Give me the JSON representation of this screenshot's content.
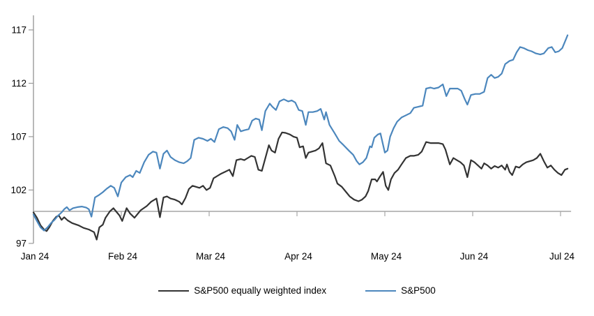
{
  "chart_data": {
    "type": "line",
    "title": "",
    "xlabel": "",
    "ylabel": "",
    "x_axis": {
      "tick_labels": [
        "Jan 24",
        "Feb 24",
        "Mar 24",
        "Apr 24",
        "May 24",
        "Jun 24",
        "Jul 24"
      ],
      "tick_positions_months": [
        0,
        1,
        2,
        3,
        4,
        5,
        6
      ]
    },
    "y_axis": {
      "ticks": [
        97,
        102,
        107,
        112,
        117
      ],
      "range": [
        97,
        118.6
      ]
    },
    "baseline_value": 100,
    "grid": "off",
    "legend_position": "bottom",
    "colors": {
      "equal_weight_line": "#333333",
      "sp500_line": "#4c87bd",
      "axis": "#9b9b9b",
      "baseline": "#a6a6a6",
      "text": "#000000"
    },
    "series": [
      {
        "name": "S&P500 equally weighted index",
        "color": "#333333",
        "points": [
          [
            0.0,
            99.9
          ],
          [
            0.04,
            99.4
          ],
          [
            0.08,
            98.7
          ],
          [
            0.12,
            98.3
          ],
          [
            0.15,
            98.15
          ],
          [
            0.18,
            98.5
          ],
          [
            0.22,
            99.1
          ],
          [
            0.26,
            99.5
          ],
          [
            0.29,
            99.6
          ],
          [
            0.32,
            99.2
          ],
          [
            0.35,
            99.45
          ],
          [
            0.39,
            99.15
          ],
          [
            0.44,
            98.9
          ],
          [
            0.51,
            98.7
          ],
          [
            0.57,
            98.45
          ],
          [
            0.63,
            98.3
          ],
          [
            0.69,
            98.05
          ],
          [
            0.72,
            97.35
          ],
          [
            0.75,
            98.5
          ],
          [
            0.79,
            98.75
          ],
          [
            0.82,
            99.4
          ],
          [
            0.87,
            100.0
          ],
          [
            0.91,
            100.3
          ],
          [
            0.95,
            99.9
          ],
          [
            0.98,
            99.6
          ],
          [
            1.01,
            99.1
          ],
          [
            1.06,
            100.3
          ],
          [
            1.1,
            99.8
          ],
          [
            1.15,
            99.4
          ],
          [
            1.22,
            100.1
          ],
          [
            1.29,
            100.5
          ],
          [
            1.34,
            100.9
          ],
          [
            1.4,
            101.2
          ],
          [
            1.44,
            99.45
          ],
          [
            1.48,
            101.3
          ],
          [
            1.52,
            101.4
          ],
          [
            1.56,
            101.2
          ],
          [
            1.61,
            101.1
          ],
          [
            1.66,
            100.9
          ],
          [
            1.69,
            100.65
          ],
          [
            1.73,
            101.25
          ],
          [
            1.77,
            102.1
          ],
          [
            1.81,
            102.4
          ],
          [
            1.85,
            102.3
          ],
          [
            1.89,
            102.2
          ],
          [
            1.93,
            102.4
          ],
          [
            1.97,
            102.0
          ],
          [
            2.01,
            102.2
          ],
          [
            2.05,
            103.1
          ],
          [
            2.09,
            103.3
          ],
          [
            2.13,
            103.5
          ],
          [
            2.18,
            103.7
          ],
          [
            2.23,
            103.9
          ],
          [
            2.27,
            103.3
          ],
          [
            2.31,
            104.8
          ],
          [
            2.36,
            104.9
          ],
          [
            2.4,
            104.8
          ],
          [
            2.44,
            105.0
          ],
          [
            2.48,
            105.2
          ],
          [
            2.52,
            105.1
          ],
          [
            2.56,
            103.9
          ],
          [
            2.6,
            103.8
          ],
          [
            2.63,
            104.7
          ],
          [
            2.68,
            106.2
          ],
          [
            2.71,
            105.7
          ],
          [
            2.75,
            105.5
          ],
          [
            2.79,
            106.8
          ],
          [
            2.83,
            107.4
          ],
          [
            2.87,
            107.35
          ],
          [
            2.92,
            107.2
          ],
          [
            2.96,
            107.0
          ],
          [
            3.0,
            106.9
          ],
          [
            3.03,
            106.0
          ],
          [
            3.07,
            106.1
          ],
          [
            3.1,
            105.0
          ],
          [
            3.13,
            105.5
          ],
          [
            3.17,
            105.6
          ],
          [
            3.21,
            105.7
          ],
          [
            3.25,
            105.9
          ],
          [
            3.29,
            106.4
          ],
          [
            3.33,
            104.5
          ],
          [
            3.38,
            104.3
          ],
          [
            3.43,
            103.3
          ],
          [
            3.46,
            102.6
          ],
          [
            3.51,
            102.3
          ],
          [
            3.56,
            101.8
          ],
          [
            3.6,
            101.4
          ],
          [
            3.65,
            101.1
          ],
          [
            3.7,
            100.95
          ],
          [
            3.74,
            101.1
          ],
          [
            3.78,
            101.4
          ],
          [
            3.81,
            101.9
          ],
          [
            3.85,
            103.0
          ],
          [
            3.89,
            103.0
          ],
          [
            3.91,
            102.8
          ],
          [
            3.94,
            103.2
          ],
          [
            3.98,
            103.7
          ],
          [
            4.01,
            102.4
          ],
          [
            4.04,
            102.0
          ],
          [
            4.07,
            103.0
          ],
          [
            4.11,
            103.6
          ],
          [
            4.15,
            103.9
          ],
          [
            4.19,
            104.4
          ],
          [
            4.24,
            105.0
          ],
          [
            4.29,
            105.2
          ],
          [
            4.33,
            105.2
          ],
          [
            4.38,
            105.3
          ],
          [
            4.42,
            105.6
          ],
          [
            4.47,
            106.5
          ],
          [
            4.52,
            106.4
          ],
          [
            4.56,
            106.4
          ],
          [
            4.61,
            106.4
          ],
          [
            4.66,
            106.3
          ],
          [
            4.69,
            105.8
          ],
          [
            4.74,
            104.4
          ],
          [
            4.78,
            105.0
          ],
          [
            4.82,
            104.8
          ],
          [
            4.86,
            104.6
          ],
          [
            4.9,
            104.3
          ],
          [
            4.94,
            103.2
          ],
          [
            4.98,
            104.8
          ],
          [
            5.02,
            104.6
          ],
          [
            5.06,
            104.3
          ],
          [
            5.1,
            104.0
          ],
          [
            5.13,
            104.5
          ],
          [
            5.17,
            104.3
          ],
          [
            5.21,
            104.0
          ],
          [
            5.25,
            104.25
          ],
          [
            5.29,
            104.1
          ],
          [
            5.33,
            104.3
          ],
          [
            5.37,
            103.9
          ],
          [
            5.39,
            104.4
          ],
          [
            5.42,
            103.7
          ],
          [
            5.45,
            103.4
          ],
          [
            5.49,
            104.2
          ],
          [
            5.53,
            104.1
          ],
          [
            5.57,
            104.4
          ],
          [
            5.61,
            104.6
          ],
          [
            5.65,
            104.7
          ],
          [
            5.69,
            104.8
          ],
          [
            5.73,
            105.0
          ],
          [
            5.77,
            105.4
          ],
          [
            5.81,
            104.7
          ],
          [
            5.85,
            104.1
          ],
          [
            5.89,
            104.3
          ],
          [
            5.93,
            103.9
          ],
          [
            5.97,
            103.6
          ],
          [
            6.01,
            103.4
          ],
          [
            6.05,
            103.9
          ],
          [
            6.08,
            104.0
          ]
        ]
      },
      {
        "name": "S&P500",
        "color": "#4c87bd",
        "points": [
          [
            0.0,
            99.7
          ],
          [
            0.04,
            99.1
          ],
          [
            0.08,
            98.5
          ],
          [
            0.12,
            98.2
          ],
          [
            0.16,
            98.5
          ],
          [
            0.2,
            98.9
          ],
          [
            0.24,
            99.2
          ],
          [
            0.28,
            99.6
          ],
          [
            0.32,
            99.9
          ],
          [
            0.35,
            100.2
          ],
          [
            0.38,
            100.4
          ],
          [
            0.41,
            100.1
          ],
          [
            0.45,
            100.3
          ],
          [
            0.5,
            100.4
          ],
          [
            0.55,
            100.45
          ],
          [
            0.6,
            100.35
          ],
          [
            0.63,
            100.2
          ],
          [
            0.66,
            99.5
          ],
          [
            0.7,
            101.3
          ],
          [
            0.74,
            101.5
          ],
          [
            0.79,
            101.8
          ],
          [
            0.83,
            102.1
          ],
          [
            0.88,
            102.4
          ],
          [
            0.92,
            102.2
          ],
          [
            0.96,
            101.4
          ],
          [
            1.0,
            102.7
          ],
          [
            1.05,
            103.2
          ],
          [
            1.1,
            103.4
          ],
          [
            1.13,
            103.2
          ],
          [
            1.17,
            103.8
          ],
          [
            1.21,
            103.6
          ],
          [
            1.26,
            104.6
          ],
          [
            1.31,
            105.3
          ],
          [
            1.36,
            105.6
          ],
          [
            1.4,
            105.5
          ],
          [
            1.44,
            104.0
          ],
          [
            1.48,
            105.4
          ],
          [
            1.52,
            105.7
          ],
          [
            1.56,
            105.1
          ],
          [
            1.61,
            104.8
          ],
          [
            1.66,
            104.6
          ],
          [
            1.71,
            104.5
          ],
          [
            1.75,
            104.7
          ],
          [
            1.79,
            105.0
          ],
          [
            1.83,
            106.7
          ],
          [
            1.88,
            106.9
          ],
          [
            1.93,
            106.8
          ],
          [
            1.98,
            106.6
          ],
          [
            2.02,
            106.8
          ],
          [
            2.06,
            106.5
          ],
          [
            2.11,
            107.7
          ],
          [
            2.16,
            107.9
          ],
          [
            2.21,
            107.8
          ],
          [
            2.25,
            107.5
          ],
          [
            2.29,
            106.7
          ],
          [
            2.32,
            108.1
          ],
          [
            2.36,
            107.5
          ],
          [
            2.4,
            107.6
          ],
          [
            2.45,
            107.7
          ],
          [
            2.49,
            108.5
          ],
          [
            2.53,
            108.7
          ],
          [
            2.57,
            108.6
          ],
          [
            2.6,
            107.6
          ],
          [
            2.64,
            109.4
          ],
          [
            2.69,
            110.1
          ],
          [
            2.72,
            109.8
          ],
          [
            2.76,
            109.5
          ],
          [
            2.8,
            110.3
          ],
          [
            2.85,
            110.5
          ],
          [
            2.9,
            110.3
          ],
          [
            2.94,
            110.4
          ],
          [
            2.98,
            110.2
          ],
          [
            3.02,
            109.5
          ],
          [
            3.06,
            109.4
          ],
          [
            3.1,
            108.1
          ],
          [
            3.13,
            109.3
          ],
          [
            3.18,
            109.3
          ],
          [
            3.23,
            109.4
          ],
          [
            3.27,
            109.6
          ],
          [
            3.31,
            108.6
          ],
          [
            3.33,
            109.3
          ],
          [
            3.37,
            108.1
          ],
          [
            3.43,
            107.3
          ],
          [
            3.48,
            106.6
          ],
          [
            3.53,
            106.2
          ],
          [
            3.59,
            105.7
          ],
          [
            3.64,
            105.3
          ],
          [
            3.68,
            104.7
          ],
          [
            3.71,
            104.4
          ],
          [
            3.75,
            104.6
          ],
          [
            3.79,
            105.0
          ],
          [
            3.83,
            106.1
          ],
          [
            3.85,
            106.0
          ],
          [
            3.88,
            106.9
          ],
          [
            3.92,
            107.2
          ],
          [
            3.95,
            107.3
          ],
          [
            4.0,
            105.5
          ],
          [
            4.03,
            105.7
          ],
          [
            4.06,
            107.0
          ],
          [
            4.1,
            107.8
          ],
          [
            4.14,
            108.4
          ],
          [
            4.19,
            108.8
          ],
          [
            4.24,
            109.0
          ],
          [
            4.29,
            109.2
          ],
          [
            4.33,
            109.7
          ],
          [
            4.38,
            109.8
          ],
          [
            4.43,
            109.9
          ],
          [
            4.47,
            111.5
          ],
          [
            4.52,
            111.6
          ],
          [
            4.56,
            111.5
          ],
          [
            4.61,
            111.6
          ],
          [
            4.66,
            111.9
          ],
          [
            4.7,
            110.8
          ],
          [
            4.74,
            111.5
          ],
          [
            4.79,
            111.5
          ],
          [
            4.83,
            111.5
          ],
          [
            4.87,
            111.3
          ],
          [
            4.91,
            110.5
          ],
          [
            4.94,
            110.0
          ],
          [
            4.98,
            110.9
          ],
          [
            5.03,
            111.0
          ],
          [
            5.08,
            111.0
          ],
          [
            5.13,
            111.2
          ],
          [
            5.17,
            112.5
          ],
          [
            5.21,
            112.8
          ],
          [
            5.25,
            112.5
          ],
          [
            5.29,
            112.6
          ],
          [
            5.33,
            112.9
          ],
          [
            5.37,
            113.8
          ],
          [
            5.42,
            114.1
          ],
          [
            5.46,
            114.2
          ],
          [
            5.5,
            114.9
          ],
          [
            5.54,
            115.4
          ],
          [
            5.58,
            115.3
          ],
          [
            5.63,
            115.1
          ],
          [
            5.67,
            115.0
          ],
          [
            5.72,
            114.8
          ],
          [
            5.77,
            114.7
          ],
          [
            5.81,
            114.8
          ],
          [
            5.86,
            115.3
          ],
          [
            5.9,
            115.4
          ],
          [
            5.94,
            114.9
          ],
          [
            5.98,
            115.0
          ],
          [
            6.02,
            115.3
          ],
          [
            6.06,
            116.1
          ],
          [
            6.08,
            116.5
          ]
        ]
      }
    ]
  },
  "legend": {
    "items": [
      {
        "label": "S&P500 equally weighted index"
      },
      {
        "label": "S&P500"
      }
    ]
  }
}
